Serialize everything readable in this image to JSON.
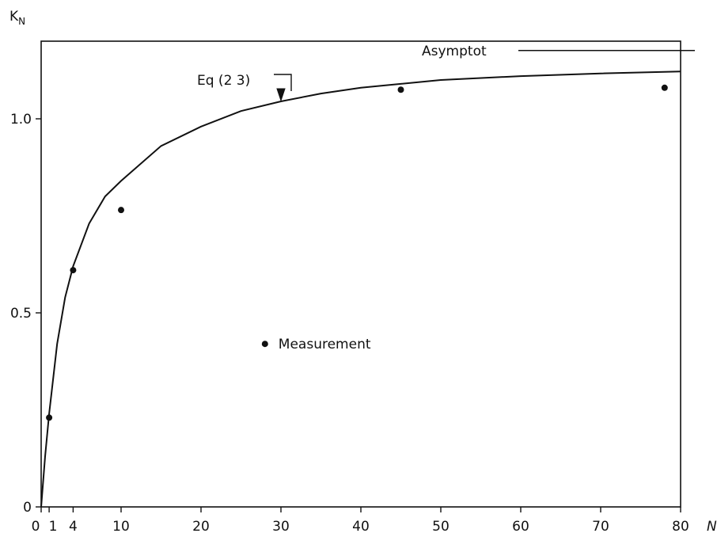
{
  "chart_data": {
    "type": "line",
    "title": "",
    "xlabel": "N",
    "ylabel": "K",
    "ylabel_subscript": "N",
    "xlim": [
      0,
      80
    ],
    "ylim": [
      0,
      1.2
    ],
    "x_ticks": [
      0,
      1,
      4,
      10,
      20,
      30,
      40,
      50,
      60,
      70,
      80
    ],
    "x_tick_labels": [
      "0",
      "1",
      "4",
      "10",
      "20",
      "30",
      "40",
      "50",
      "60",
      "70",
      "80"
    ],
    "y_ticks": [
      0,
      0.5,
      1.0
    ],
    "y_tick_labels": [
      "0",
      "0.5",
      "1.0"
    ],
    "grid": false,
    "series": [
      {
        "name": "Eq (2 3)",
        "kind": "line",
        "x": [
          0,
          0.5,
          1,
          2,
          3,
          4,
          6,
          8,
          10,
          15,
          20,
          25,
          30,
          35,
          40,
          50,
          60,
          70,
          80
        ],
        "y": [
          0,
          0.13,
          0.24,
          0.42,
          0.54,
          0.62,
          0.73,
          0.8,
          0.84,
          0.93,
          0.98,
          1.02,
          1.045,
          1.065,
          1.08,
          1.1,
          1.11,
          1.117,
          1.122
        ]
      },
      {
        "name": "Measurement",
        "kind": "scatter",
        "x": [
          1,
          4,
          10,
          45,
          78
        ],
        "y": [
          0.23,
          0.61,
          0.765,
          1.075,
          1.08
        ]
      }
    ],
    "annotations": {
      "asymptote_label": "Asymptot",
      "asymptote_value": 1.176,
      "equation_label": "Eq (2 3)",
      "equation_arrow_x": 30,
      "legend_marker_label": "Measurement",
      "legend_marker_x": 28,
      "legend_marker_y": 0.42
    }
  }
}
